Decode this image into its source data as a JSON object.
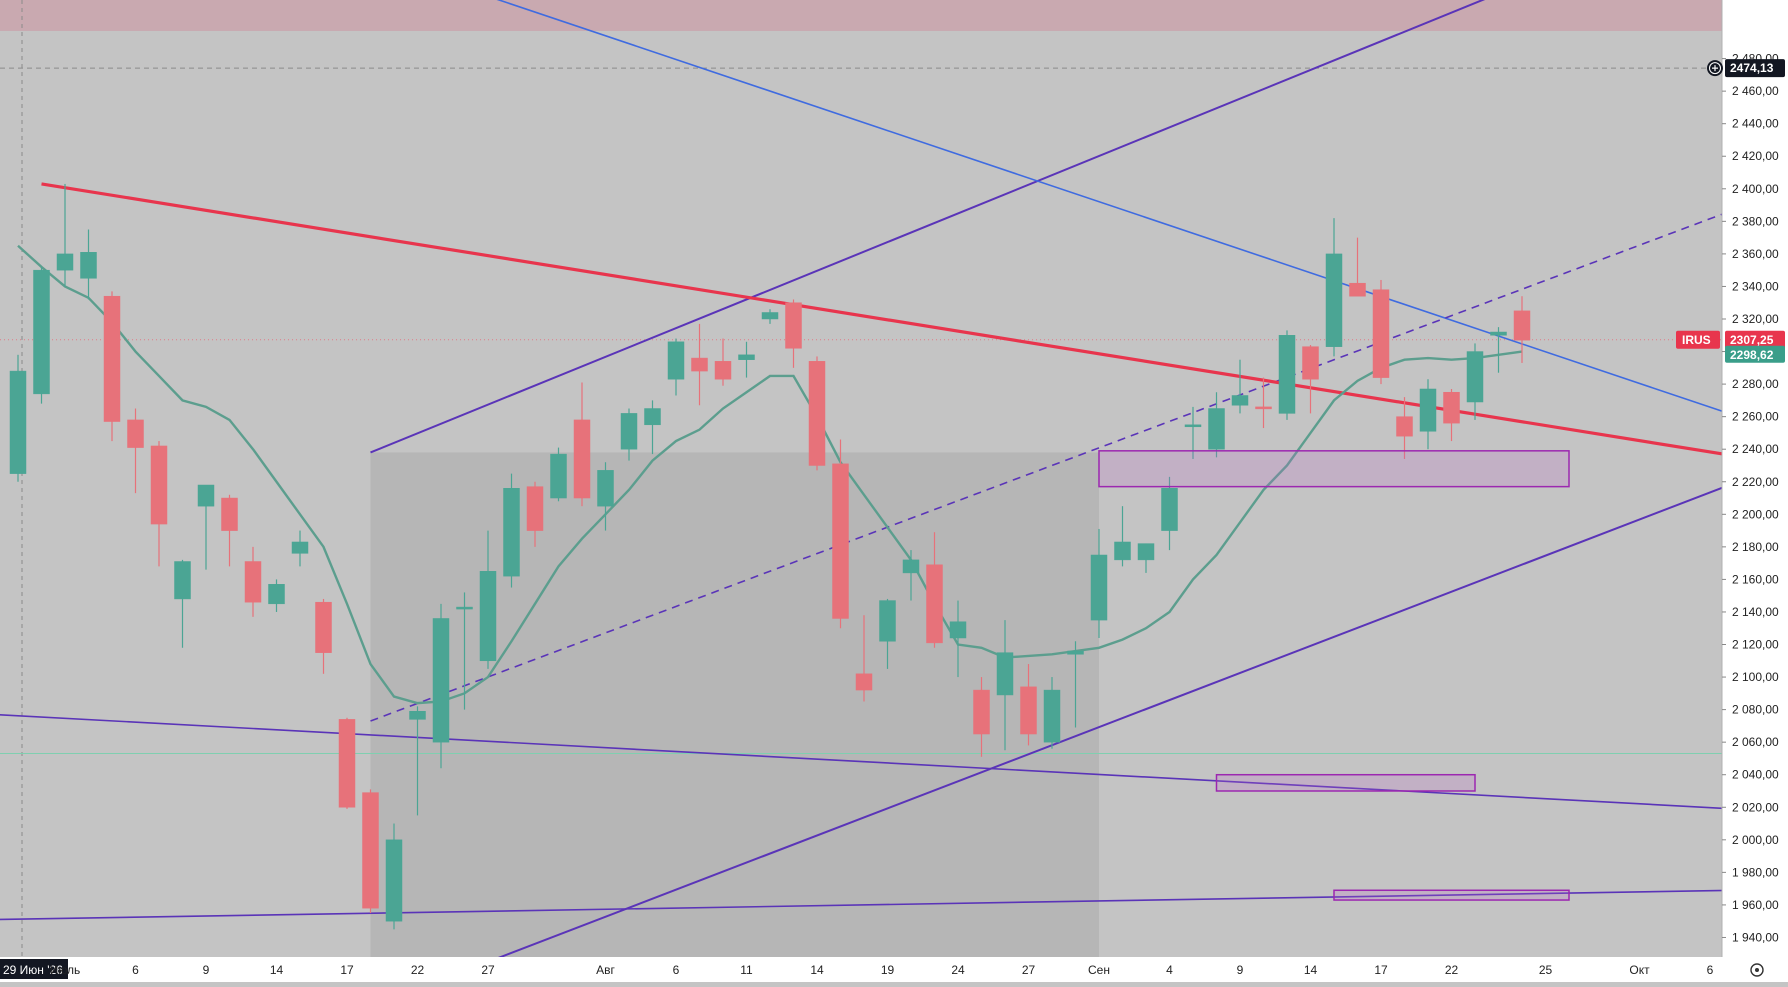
{
  "chart_data": {
    "type": "candlestick",
    "symbol": "IRUS",
    "colors": {
      "up": "#4ba594",
      "down": "#e7727a",
      "ma": "#5c9e8e",
      "red_line": "#e8354d",
      "blue_line": "#3f6be0",
      "purple_line": "#5a34b8",
      "zone_border": "#9c27b0",
      "top_band": "#c9a9b0",
      "background": "#c4c4c4",
      "shade": "#b3b3b3"
    },
    "y_axis": {
      "min": 1928,
      "max": 2516,
      "ticks": [
        "2 480,00",
        "2 460,00",
        "2 440,00",
        "2 420,00",
        "2 400,00",
        "2 380,00",
        "2 360,00",
        "2 340,00",
        "2 320,00",
        "2 300,00",
        "2 280,00",
        "2 260,00",
        "2 240,00",
        "2 220,00",
        "2 200,00",
        "2 180,00",
        "2 160,00",
        "2 140,00",
        "2 120,00",
        "2 100,00",
        "2 080,00",
        "2 060,00",
        "2 040,00",
        "2 020,00",
        "2 000,00",
        "1 980,00",
        "1 960,00",
        "1 940,00"
      ],
      "tick_values": [
        2480,
        2460,
        2440,
        2420,
        2400,
        2380,
        2360,
        2340,
        2320,
        2300,
        2280,
        2260,
        2240,
        2220,
        2200,
        2180,
        2160,
        2140,
        2120,
        2100,
        2080,
        2060,
        2040,
        2020,
        2000,
        1980,
        1960,
        1940
      ]
    },
    "x_axis": {
      "labels": [
        {
          "i": 0,
          "text": "29 Июн '26",
          "highlight": true
        },
        {
          "i": 2,
          "text": "Июль"
        },
        {
          "i": 5,
          "text": "6"
        },
        {
          "i": 8,
          "text": "9"
        },
        {
          "i": 11,
          "text": "14"
        },
        {
          "i": 14,
          "text": "17"
        },
        {
          "i": 17,
          "text": "22"
        },
        {
          "i": 20,
          "text": "27"
        },
        {
          "i": 25,
          "text": "Авг"
        },
        {
          "i": 28,
          "text": "6"
        },
        {
          "i": 31,
          "text": "11"
        },
        {
          "i": 34,
          "text": "14"
        },
        {
          "i": 37,
          "text": "19"
        },
        {
          "i": 40,
          "text": "24"
        },
        {
          "i": 43,
          "text": "27"
        },
        {
          "i": 46,
          "text": "Сен"
        },
        {
          "i": 49,
          "text": "4"
        },
        {
          "i": 52,
          "text": "9"
        },
        {
          "i": 55,
          "text": "14"
        },
        {
          "i": 58,
          "text": "17"
        },
        {
          "i": 61,
          "text": "22"
        },
        {
          "i": 65,
          "text": "25"
        },
        {
          "i": 69,
          "text": "Окт"
        },
        {
          "i": 72,
          "text": "6"
        }
      ]
    },
    "candles": [
      {
        "o": 2225,
        "h": 2298,
        "l": 2220,
        "c": 2288
      },
      {
        "o": 2274,
        "h": 2352,
        "l": 2268,
        "c": 2350
      },
      {
        "o": 2350,
        "h": 2403,
        "l": 2340,
        "c": 2360
      },
      {
        "o": 2345,
        "h": 2375,
        "l": 2332,
        "c": 2361
      },
      {
        "o": 2334,
        "h": 2337,
        "l": 2245,
        "c": 2257
      },
      {
        "o": 2258,
        "h": 2265,
        "l": 2213,
        "c": 2241
      },
      {
        "o": 2242,
        "h": 2245,
        "l": 2168,
        "c": 2194
      },
      {
        "o": 2148,
        "h": 2172,
        "l": 2118,
        "c": 2171
      },
      {
        "o": 2205,
        "h": 2218,
        "l": 2166,
        "c": 2218
      },
      {
        "o": 2210,
        "h": 2212,
        "l": 2168,
        "c": 2190
      },
      {
        "o": 2171,
        "h": 2180,
        "l": 2137,
        "c": 2146
      },
      {
        "o": 2145,
        "h": 2160,
        "l": 2140,
        "c": 2157
      },
      {
        "o": 2176,
        "h": 2190,
        "l": 2168,
        "c": 2183
      },
      {
        "o": 2146,
        "h": 2148,
        "l": 2102,
        "c": 2115
      },
      {
        "o": 2074,
        "h": 2075,
        "l": 2019,
        "c": 2020
      },
      {
        "o": 2029,
        "h": 2031,
        "l": 1955,
        "c": 1958
      },
      {
        "o": 1950,
        "h": 2010,
        "l": 1945,
        "c": 2000
      },
      {
        "o": 2074,
        "h": 2082,
        "l": 2015,
        "c": 2079
      },
      {
        "o": 2060,
        "h": 2145,
        "l": 2044,
        "c": 2136
      },
      {
        "o": 2142,
        "h": 2152,
        "l": 2080,
        "c": 2143
      },
      {
        "o": 2110,
        "h": 2190,
        "l": 2105,
        "c": 2165
      },
      {
        "o": 2162,
        "h": 2225,
        "l": 2155,
        "c": 2216
      },
      {
        "o": 2217,
        "h": 2220,
        "l": 2180,
        "c": 2190
      },
      {
        "o": 2210,
        "h": 2241,
        "l": 2208,
        "c": 2237
      },
      {
        "o": 2258,
        "h": 2281,
        "l": 2205,
        "c": 2210
      },
      {
        "o": 2205,
        "h": 2232,
        "l": 2190,
        "c": 2227
      },
      {
        "o": 2240,
        "h": 2265,
        "l": 2233,
        "c": 2262
      },
      {
        "o": 2255,
        "h": 2270,
        "l": 2237,
        "c": 2265
      },
      {
        "o": 2283,
        "h": 2308,
        "l": 2273,
        "c": 2306
      },
      {
        "o": 2296,
        "h": 2317,
        "l": 2267,
        "c": 2288
      },
      {
        "o": 2294,
        "h": 2308,
        "l": 2279,
        "c": 2283
      },
      {
        "o": 2295,
        "h": 2306,
        "l": 2284,
        "c": 2298
      },
      {
        "o": 2320,
        "h": 2326,
        "l": 2317,
        "c": 2324
      },
      {
        "o": 2330,
        "h": 2332,
        "l": 2290,
        "c": 2302
      },
      {
        "o": 2294,
        "h": 2297,
        "l": 2227,
        "c": 2230
      },
      {
        "o": 2231,
        "h": 2246,
        "l": 2130,
        "c": 2136
      },
      {
        "o": 2102,
        "h": 2138,
        "l": 2085,
        "c": 2092
      },
      {
        "o": 2122,
        "h": 2148,
        "l": 2105,
        "c": 2147
      },
      {
        "o": 2164,
        "h": 2178,
        "l": 2147,
        "c": 2172
      },
      {
        "o": 2169,
        "h": 2189,
        "l": 2118,
        "c": 2121
      },
      {
        "o": 2124,
        "h": 2147,
        "l": 2100,
        "c": 2134
      },
      {
        "o": 2092,
        "h": 2100,
        "l": 2051,
        "c": 2065
      },
      {
        "o": 2089,
        "h": 2135,
        "l": 2055,
        "c": 2115
      },
      {
        "o": 2094,
        "h": 2108,
        "l": 2058,
        "c": 2065
      },
      {
        "o": 2060,
        "h": 2100,
        "l": 2056,
        "c": 2092
      },
      {
        "o": 2114,
        "h": 2122,
        "l": 2069,
        "c": 2116
      },
      {
        "o": 2135,
        "h": 2191,
        "l": 2124,
        "c": 2175
      },
      {
        "o": 2172,
        "h": 2205,
        "l": 2168,
        "c": 2183
      },
      {
        "o": 2172,
        "h": 2182,
        "l": 2164,
        "c": 2182
      },
      {
        "o": 2190,
        "h": 2223,
        "l": 2178,
        "c": 2216
      },
      {
        "o": 2255,
        "h": 2266,
        "l": 2234,
        "c": 2255
      },
      {
        "o": 2240,
        "h": 2275,
        "l": 2235,
        "c": 2265
      },
      {
        "o": 2267,
        "h": 2295,
        "l": 2262,
        "c": 2273
      },
      {
        "o": 2266,
        "h": 2284,
        "l": 2253,
        "c": 2265
      },
      {
        "o": 2262,
        "h": 2313,
        "l": 2258,
        "c": 2310
      },
      {
        "o": 2303,
        "h": 2304,
        "l": 2262,
        "c": 2283
      },
      {
        "o": 2303,
        "h": 2382,
        "l": 2297,
        "c": 2360
      },
      {
        "o": 2342,
        "h": 2370,
        "l": 2336,
        "c": 2334
      },
      {
        "o": 2338,
        "h": 2344,
        "l": 2280,
        "c": 2284
      },
      {
        "o": 2260,
        "h": 2272,
        "l": 2234,
        "c": 2248
      },
      {
        "o": 2251,
        "h": 2283,
        "l": 2240,
        "c": 2277
      },
      {
        "o": 2275,
        "h": 2277,
        "l": 2245,
        "c": 2256
      },
      {
        "o": 2269,
        "h": 2305,
        "l": 2258,
        "c": 2300
      },
      {
        "o": 2310,
        "h": 2315,
        "l": 2287,
        "c": 2312
      },
      {
        "o": 2325,
        "h": 2334,
        "l": 2293,
        "c": 2307
      }
    ],
    "ma": [
      2365,
      2352,
      2340,
      2333,
      2318,
      2300,
      2285,
      2270,
      2266,
      2258,
      2240,
      2220,
      2200,
      2180,
      2145,
      2108,
      2088,
      2084,
      2085,
      2090,
      2100,
      2122,
      2145,
      2168,
      2185,
      2200,
      2215,
      2233,
      2245,
      2252,
      2265,
      2275,
      2285,
      2285,
      2260,
      2232,
      2212,
      2192,
      2172,
      2145,
      2120,
      2118,
      2112,
      2113,
      2114,
      2116,
      2118,
      2123,
      2130,
      2140,
      2160,
      2175,
      2195,
      2215,
      2230,
      2250,
      2270,
      2282,
      2290,
      2295,
      2296,
      2295,
      2296,
      2298,
      2300
    ],
    "lines": {
      "red": [
        [
          1,
          2403
        ],
        [
          73,
          2236
        ]
      ],
      "blue": [
        [
          18,
          2528
        ],
        [
          73,
          2261
        ]
      ],
      "purple_upper": [
        [
          15,
          2238
        ],
        [
          63,
          2520
        ]
      ],
      "purple_lower": [
        [
          20,
          1925
        ],
        [
          73,
          2219
        ]
      ],
      "purple_flat": [
        [
          -1,
          2077
        ],
        [
          73,
          2019
        ]
      ],
      "purple_bottom": [
        [
          -1,
          1951
        ],
        [
          73,
          1969
        ]
      ],
      "dashed": [
        [
          15,
          2073
        ],
        [
          73,
          2387
        ]
      ]
    },
    "zones": [
      {
        "x0": 46,
        "x1": 66,
        "top": 2239,
        "bottom": 2217
      },
      {
        "x0": 51,
        "x1": 62,
        "top": 2040,
        "bottom": 2030
      },
      {
        "x0": 56,
        "x1": 66,
        "top": 1969,
        "bottom": 1963
      }
    ],
    "price_tags": [
      {
        "label": "2474,13",
        "value": 2474.13,
        "style": "dark"
      },
      {
        "label": "2307,25",
        "value": 2307.25,
        "style": "red",
        "symbol": "IRUS"
      },
      {
        "label": "2298,62",
        "value": 2298.62,
        "style": "green"
      }
    ],
    "hlines": {
      "dashed_gray": 2474.13,
      "green_thin": 2053,
      "red_dotted": 2307.25,
      "top_band_bottom": 2497
    }
  }
}
